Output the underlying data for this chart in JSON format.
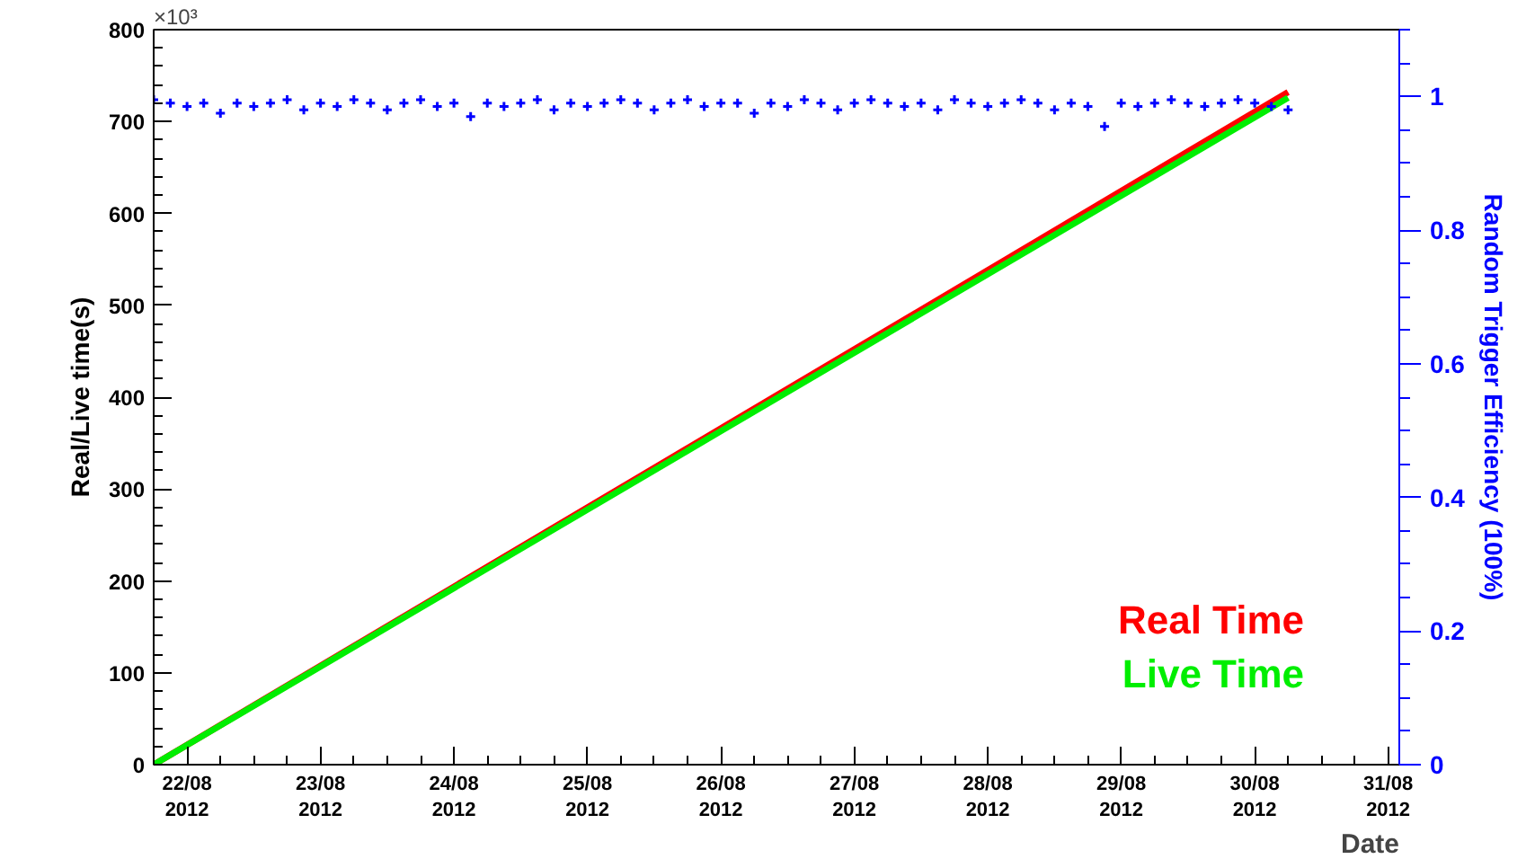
{
  "chart_data": {
    "type": "line",
    "xlabel": "Date",
    "ylabel": "Real/Live time(s)",
    "y2label": "Random Trigger Efficiency (100%)",
    "annotations": [
      "×10³"
    ],
    "xlim": [
      "2012-08-21T18:00",
      "2012-08-31T02:00"
    ],
    "xticks": [
      {
        "value": "2012-08-22",
        "label": "22/08\n2012"
      },
      {
        "value": "2012-08-23",
        "label": "23/08\n2012"
      },
      {
        "value": "2012-08-24",
        "label": "24/08\n2012"
      },
      {
        "value": "2012-08-25",
        "label": "25/08\n2012"
      },
      {
        "value": "2012-08-26",
        "label": "26/08\n2012"
      },
      {
        "value": "2012-08-27",
        "label": "27/08\n2012"
      },
      {
        "value": "2012-08-28",
        "label": "28/08\n2012"
      },
      {
        "value": "2012-08-29",
        "label": "29/08\n2012"
      },
      {
        "value": "2012-08-30",
        "label": "30/08\n2012"
      },
      {
        "value": "2012-08-31",
        "label": "31/08\n2012"
      }
    ],
    "ylim": [
      0,
      800
    ],
    "yticks": [
      0,
      100,
      200,
      300,
      400,
      500,
      600,
      700,
      800
    ],
    "y2lim": [
      0,
      1.1
    ],
    "y2ticks": [
      0,
      0.2,
      0.4,
      0.6,
      0.8,
      1
    ],
    "grid": false,
    "legend": "bottom right",
    "series": [
      {
        "name": "Real Time",
        "color": "#ff0000",
        "line_style": "solid",
        "x": [
          "2012-08-21T18:00",
          "2012-08-26T00:00",
          "2012-08-30T06:00"
        ],
        "values": [
          0,
          366,
          732
        ]
      },
      {
        "name": "Live Time",
        "color": "#00ee00",
        "line_style": "solid",
        "x": [
          "2012-08-21T18:00",
          "2012-08-26T00:00",
          "2012-08-30T06:00"
        ],
        "values": [
          0,
          363,
          726
        ]
      },
      {
        "color": "#0000ff",
        "type": "scatter",
        "marker": "cross",
        "axis": "y2",
        "x": [
          "2012-08-21T18:00",
          "2012-08-21T21:00",
          "2012-08-22T00:00",
          "2012-08-22T03:00",
          "2012-08-22T06:00",
          "2012-08-22T09:00",
          "2012-08-22T12:00",
          "2012-08-22T15:00",
          "2012-08-22T18:00",
          "2012-08-22T21:00",
          "2012-08-23T00:00",
          "2012-08-23T03:00",
          "2012-08-23T06:00",
          "2012-08-23T09:00",
          "2012-08-23T12:00",
          "2012-08-23T15:00",
          "2012-08-23T18:00",
          "2012-08-23T21:00",
          "2012-08-24T00:00",
          "2012-08-24T03:00",
          "2012-08-24T06:00",
          "2012-08-24T09:00",
          "2012-08-24T12:00",
          "2012-08-24T15:00",
          "2012-08-24T18:00",
          "2012-08-24T21:00",
          "2012-08-25T00:00",
          "2012-08-25T03:00",
          "2012-08-25T06:00",
          "2012-08-25T09:00",
          "2012-08-25T12:00",
          "2012-08-25T15:00",
          "2012-08-25T18:00",
          "2012-08-25T21:00",
          "2012-08-26T00:00",
          "2012-08-26T03:00",
          "2012-08-26T06:00",
          "2012-08-26T09:00",
          "2012-08-26T12:00",
          "2012-08-26T15:00",
          "2012-08-26T18:00",
          "2012-08-26T21:00",
          "2012-08-27T00:00",
          "2012-08-27T03:00",
          "2012-08-27T06:00",
          "2012-08-27T09:00",
          "2012-08-27T12:00",
          "2012-08-27T15:00",
          "2012-08-27T18:00",
          "2012-08-27T21:00",
          "2012-08-28T00:00",
          "2012-08-28T03:00",
          "2012-08-28T06:00",
          "2012-08-28T09:00",
          "2012-08-28T12:00",
          "2012-08-28T15:00",
          "2012-08-28T18:00",
          "2012-08-28T21:00",
          "2012-08-29T00:00",
          "2012-08-29T03:00",
          "2012-08-29T06:00",
          "2012-08-29T09:00",
          "2012-08-29T12:00",
          "2012-08-29T15:00",
          "2012-08-29T18:00",
          "2012-08-29T21:00",
          "2012-08-30T00:00",
          "2012-08-30T03:00",
          "2012-08-30T06:00"
        ],
        "values": [
          0.995,
          0.99,
          0.985,
          0.99,
          0.975,
          0.99,
          0.985,
          0.99,
          0.995,
          0.98,
          0.99,
          0.985,
          0.995,
          0.99,
          0.98,
          0.99,
          0.995,
          0.985,
          0.99,
          0.97,
          0.99,
          0.985,
          0.99,
          0.995,
          0.98,
          0.99,
          0.985,
          0.99,
          0.995,
          0.99,
          0.98,
          0.99,
          0.995,
          0.985,
          0.99,
          0.99,
          0.975,
          0.99,
          0.985,
          0.995,
          0.99,
          0.98,
          0.99,
          0.995,
          0.99,
          0.985,
          0.99,
          0.98,
          0.995,
          0.99,
          0.985,
          0.99,
          0.995,
          0.99,
          0.98,
          0.99,
          0.985,
          0.955,
          0.99,
          0.985,
          0.99,
          0.995,
          0.99,
          0.985,
          0.99,
          0.995,
          0.99,
          0.985,
          0.98
        ]
      }
    ]
  }
}
